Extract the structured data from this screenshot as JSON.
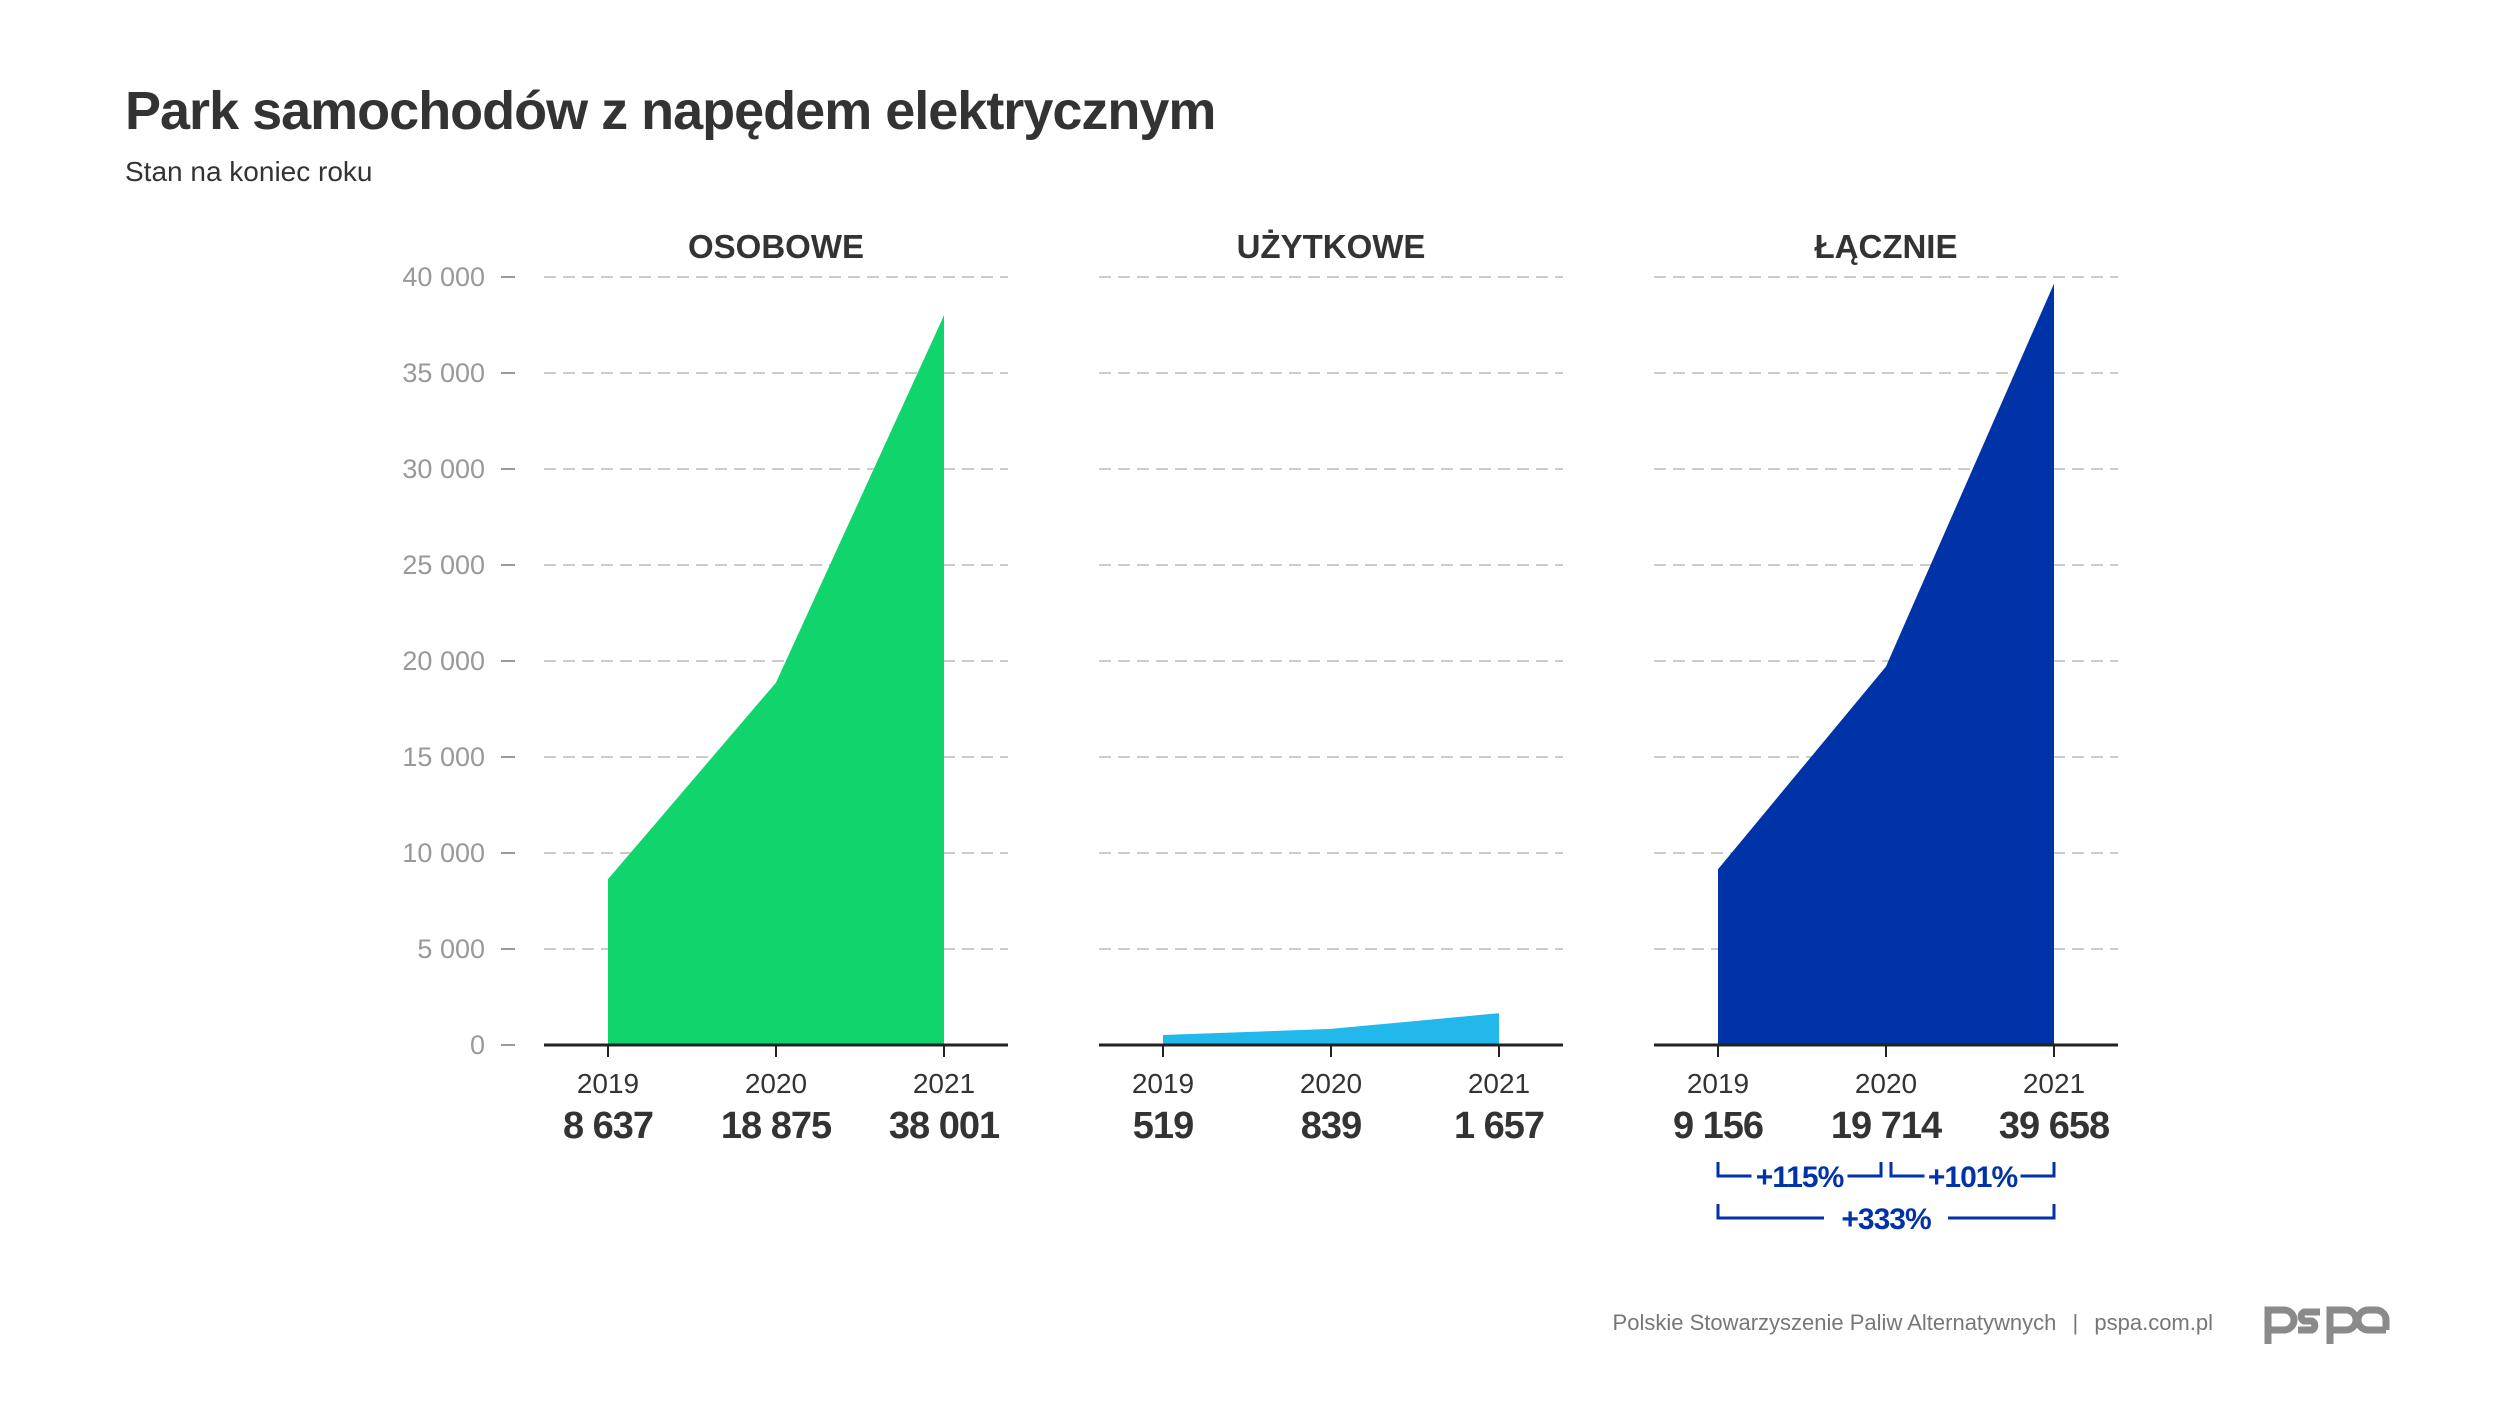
{
  "title": "Park samochodów z napędem elektrycznym",
  "subtitle": "Stan na koniec roku",
  "footer": {
    "org": "Polskie Stowarzyszenie Paliw Alternatywnych",
    "separator": "|",
    "url": "pspa.com.pl",
    "logo": "pspa"
  },
  "chart_data": [
    {
      "type": "area",
      "title": "OSOBOWE",
      "categories": [
        "2019",
        "2020",
        "2021"
      ],
      "values": [
        8637,
        18875,
        38001
      ],
      "value_labels": [
        "8 637",
        "18 875",
        "38 001"
      ],
      "color": "#10d46c",
      "ylim": [
        0,
        40000
      ],
      "yticks": [
        0,
        5000,
        10000,
        15000,
        20000,
        25000,
        30000,
        35000,
        40000
      ],
      "ytick_labels": [
        "0",
        "5 000",
        "10 000",
        "15 000",
        "20 000",
        "25 000",
        "30 000",
        "35 000",
        "40 000"
      ],
      "grid": true
    },
    {
      "type": "area",
      "title": "UŻYTKOWE",
      "categories": [
        "2019",
        "2020",
        "2021"
      ],
      "values": [
        519,
        839,
        1657
      ],
      "value_labels": [
        "519",
        "839",
        "1 657"
      ],
      "color": "#22b8ec",
      "ylim": [
        0,
        40000
      ],
      "grid": true
    },
    {
      "type": "area",
      "title": "ŁĄCZNIE",
      "categories": [
        "2019",
        "2020",
        "2021"
      ],
      "values": [
        9156,
        19714,
        39658
      ],
      "value_labels": [
        "9 156",
        "19 714",
        "39 658"
      ],
      "color": "#0033a8",
      "ylim": [
        0,
        40000
      ],
      "grid": true,
      "annotations": [
        {
          "from": "2019",
          "to": "2020",
          "label": "+115%"
        },
        {
          "from": "2020",
          "to": "2021",
          "label": "+101%"
        },
        {
          "from": "2019",
          "to": "2021",
          "label": "+333%"
        }
      ],
      "annotation_color": "#0033a8"
    }
  ]
}
